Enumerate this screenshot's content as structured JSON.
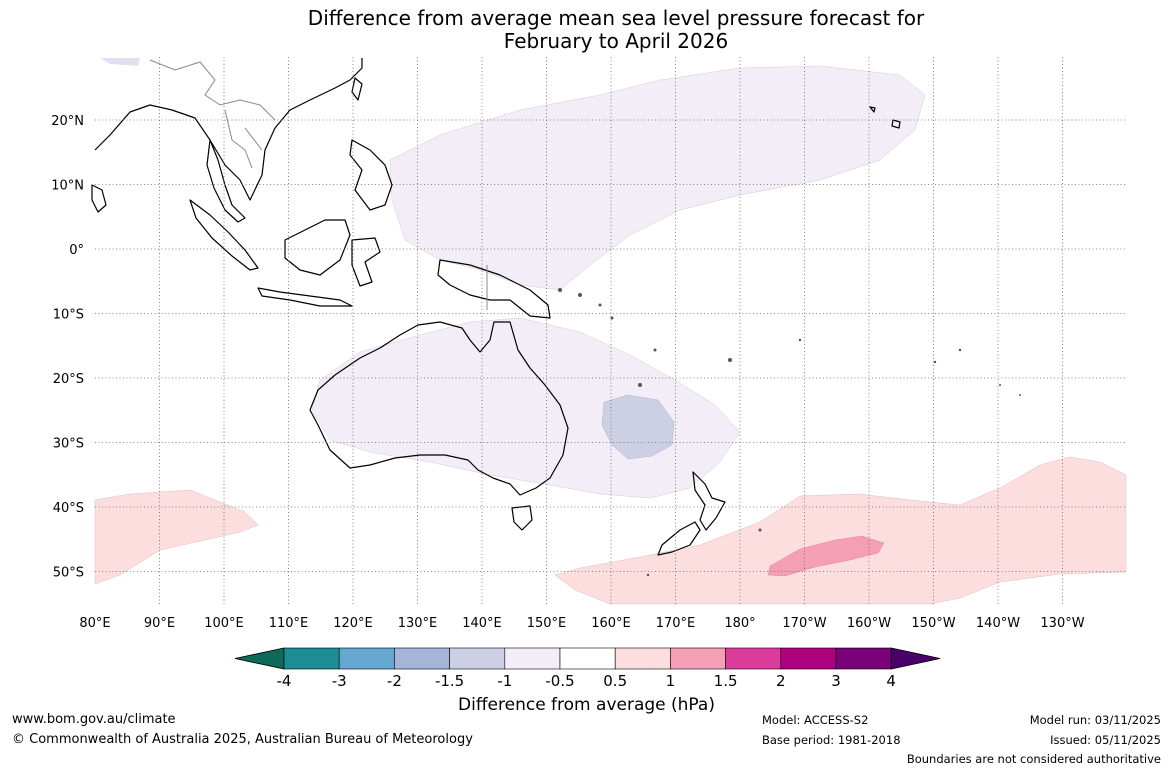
{
  "title_line1": "Difference from average mean sea level pressure forecast for",
  "title_line2": "February to April 2026",
  "lon_labels": [
    "80°E",
    "90°E",
    "100°E",
    "110°E",
    "120°E",
    "130°E",
    "140°E",
    "150°E",
    "160°E",
    "170°E",
    "180°",
    "170°W",
    "160°W",
    "150°W",
    "140°W",
    "130°W"
  ],
  "lat_labels": [
    "20°N",
    "10°N",
    "0°",
    "10°S",
    "20°S",
    "30°S",
    "40°S",
    "50°S"
  ],
  "colorbar": {
    "title": "Difference from average (hPa)",
    "ticks": [
      "-4",
      "-3",
      "-2",
      "-1.5",
      "-1",
      "-0.5",
      "0.5",
      "1",
      "1.5",
      "2",
      "3",
      "4"
    ],
    "colors": [
      "#0d6a5b",
      "#1d8d94",
      "#64a8d1",
      "#a5b5d8",
      "#cdd0e5",
      "#f2edf6",
      "#ffffff",
      "#fddedf",
      "#f59fb7",
      "#db3c99",
      "#ae017e",
      "#7a0177",
      "#49006a"
    ]
  },
  "footer": {
    "website": "www.bom.gov.au/climate",
    "copyright": "© Commonwealth of Australia 2025, Australian Bureau of Meteorology",
    "model": "Model: ACCESS-S2",
    "base_period": "Base period: 1981-2018",
    "model_run": "Model run: 03/11/2025",
    "issued": "Issued: 05/11/2025",
    "disclaimer": "Boundaries are not considered authoritative"
  }
}
